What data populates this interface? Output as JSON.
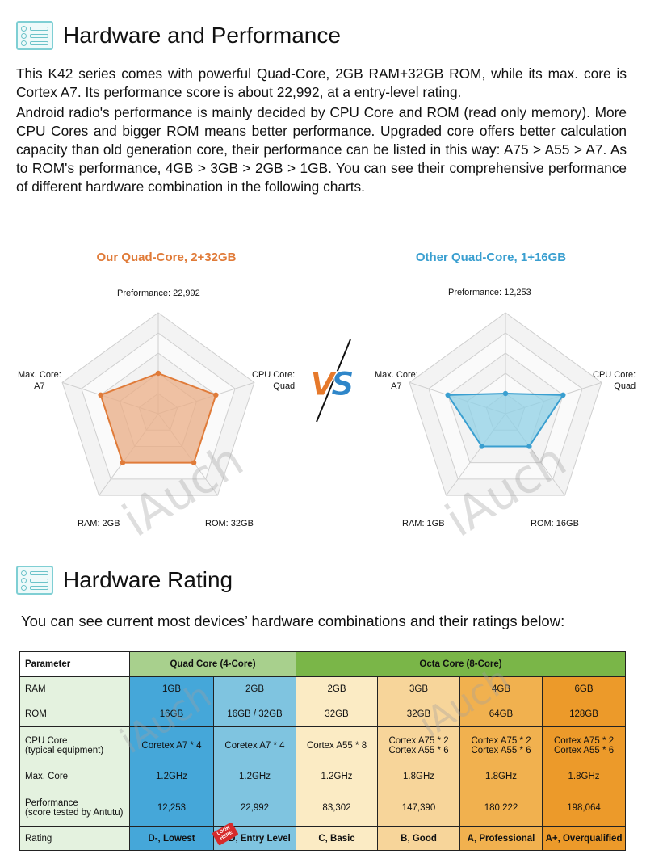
{
  "section1": {
    "icon": "list-icon",
    "title": "Hardware and Performance",
    "para1": "This K42 series comes with powerful Quad-Core, 2GB RAM+32GB ROM, while its max. core is Cortex A7. Its performance score is about 22,992, at a entry-level rating.",
    "para2": "Android radio's performance is mainly decided by CPU Core and ROM (read only memory). More CPU Cores and bigger ROM means better performance.  Upgraded core offers better calculation capacity than old generation core, their performance can be listed in this way: A75 > A55 > A7. As to ROM's performance, 4GB > 3GB > 2GB > 1GB. You can see their comprehensive performance of different hardware combination in the following charts."
  },
  "radar_left": {
    "title": "Our Quad-Core, 2+32GB",
    "color": "#e07b39",
    "fill": "#ebad86",
    "labels": {
      "top": "Preformance: 22,992",
      "right_line1": "CPU Core:",
      "right_line2": "Quad",
      "left_line1": "Max. Core:",
      "left_line2": "A7",
      "bottom_left": "RAM: 2GB",
      "bottom_right": "ROM: 32GB"
    }
  },
  "radar_right": {
    "title": "Other Quad-Core, 1+16GB",
    "color": "#3a9fd0",
    "fill": "#8fd0e6",
    "labels": {
      "top": "Preformance: 12,253",
      "right_line1": "CPU Core:",
      "right_line2": "Quad",
      "left_line1": "Max. Core:",
      "left_line2": "A7",
      "bottom_left": "RAM: 1GB",
      "bottom_right": "ROM: 16GB"
    }
  },
  "vs_text": "VS",
  "watermark": "iAuch",
  "section2": {
    "icon": "list-icon",
    "title": "Hardware Rating",
    "intro": "You can see current most devices’ hardware combinations and their ratings below:"
  },
  "table": {
    "header": {
      "param": "Parameter",
      "quad": "Quad Core (4-Core)",
      "octa": "Octa Core (8-Core)"
    },
    "rows": [
      {
        "label": "RAM",
        "cells": [
          "1GB",
          "2GB",
          "2GB",
          "3GB",
          "4GB",
          "6GB"
        ]
      },
      {
        "label": "ROM",
        "cells": [
          "16GB",
          "16GB / 32GB",
          "32GB",
          "32GB",
          "64GB",
          "128GB"
        ]
      },
      {
        "label_line1": "CPU Core",
        "label_line2": "(typical equipment)",
        "cells": [
          "Coretex A7 * 4",
          "Coretex A7 * 4",
          "Cortex A55 * 8",
          "Cortex A75 * 2",
          "Cortex A75 * 2",
          "Cortex A75 * 2"
        ],
        "cells_line2": [
          "",
          "",
          "",
          "Cortex A55 * 6",
          "Cortex A55 * 6",
          "Cortex A55 * 6"
        ]
      },
      {
        "label": "Max. Core",
        "cells": [
          "1.2GHz",
          "1.2GHz",
          "1.2GHz",
          "1.8GHz",
          "1.8GHz",
          "1.8GHz"
        ]
      },
      {
        "label_line1": "Performance",
        "label_line2": "(score tested by Antutu)",
        "cells": [
          "12,253",
          "22,992",
          "83,302",
          "147,390",
          "180,222",
          "198,064"
        ]
      },
      {
        "label": "Rating",
        "cells": [
          "D-, Lowest",
          "D, Entry Level",
          "C, Basic",
          "B, Good",
          "A, Professional",
          "A+, Overqualified"
        ]
      }
    ],
    "look_tag": "LOOK HERE"
  }
}
